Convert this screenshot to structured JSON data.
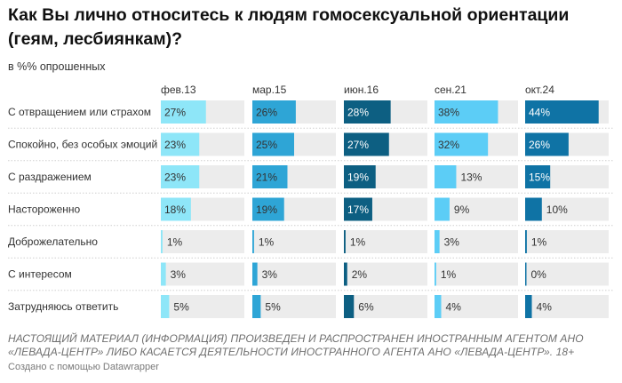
{
  "title": "Как Вы лично относитесь к людям гомосексуальной ориентации (геям, лесбиянкам)?",
  "subtitle": "в %% опрошенных",
  "footnote": "НАСТОЯЩИЙ МАТЕРИАЛ (ИНФОРМАЦИЯ) ПРОИЗВЕДЕН И РАСПРОСТРАНЕН ИНОСТРАННЫМ АГЕНТОМ АНО «ЛЕВАДА-ЦЕНТР» ЛИБО КАСАЕТСЯ ДЕЯТЕЛЬНОСТИ ИНОСТРАННОГО АГЕНТА АНО «ЛЕВАДА-ЦЕНТР». 18+",
  "credit": "Создано с помощью Datawrapper",
  "chart_data": {
    "type": "bar",
    "title": "Как Вы лично относитесь к людям гомосексуальной ориентации (геям, лесбиянкам)?",
    "unit": "%",
    "xlim": [
      0,
      50
    ],
    "categories": [
      "С отвращением или страхом",
      "Спокойно, без особых эмоций",
      "С раздражением",
      "Настороженно",
      "Доброжелательно",
      "С интересом",
      "Затрудняюсь ответить"
    ],
    "series": [
      {
        "name": "фев.13",
        "color": "#8ee6f8",
        "values": [
          27,
          23,
          23,
          18,
          1,
          3,
          5
        ]
      },
      {
        "name": "мар.15",
        "color": "#2ea5d6",
        "values": [
          26,
          25,
          21,
          19,
          1,
          3,
          5
        ]
      },
      {
        "name": "июн.16",
        "color": "#0d5f82",
        "values": [
          28,
          27,
          19,
          17,
          1,
          2,
          6
        ]
      },
      {
        "name": "сен.21",
        "color": "#5ccdf6",
        "values": [
          38,
          32,
          13,
          9,
          3,
          1,
          4
        ]
      },
      {
        "name": "окт.24",
        "color": "#0f73a5",
        "values": [
          44,
          26,
          15,
          10,
          1,
          0,
          4
        ]
      }
    ]
  }
}
